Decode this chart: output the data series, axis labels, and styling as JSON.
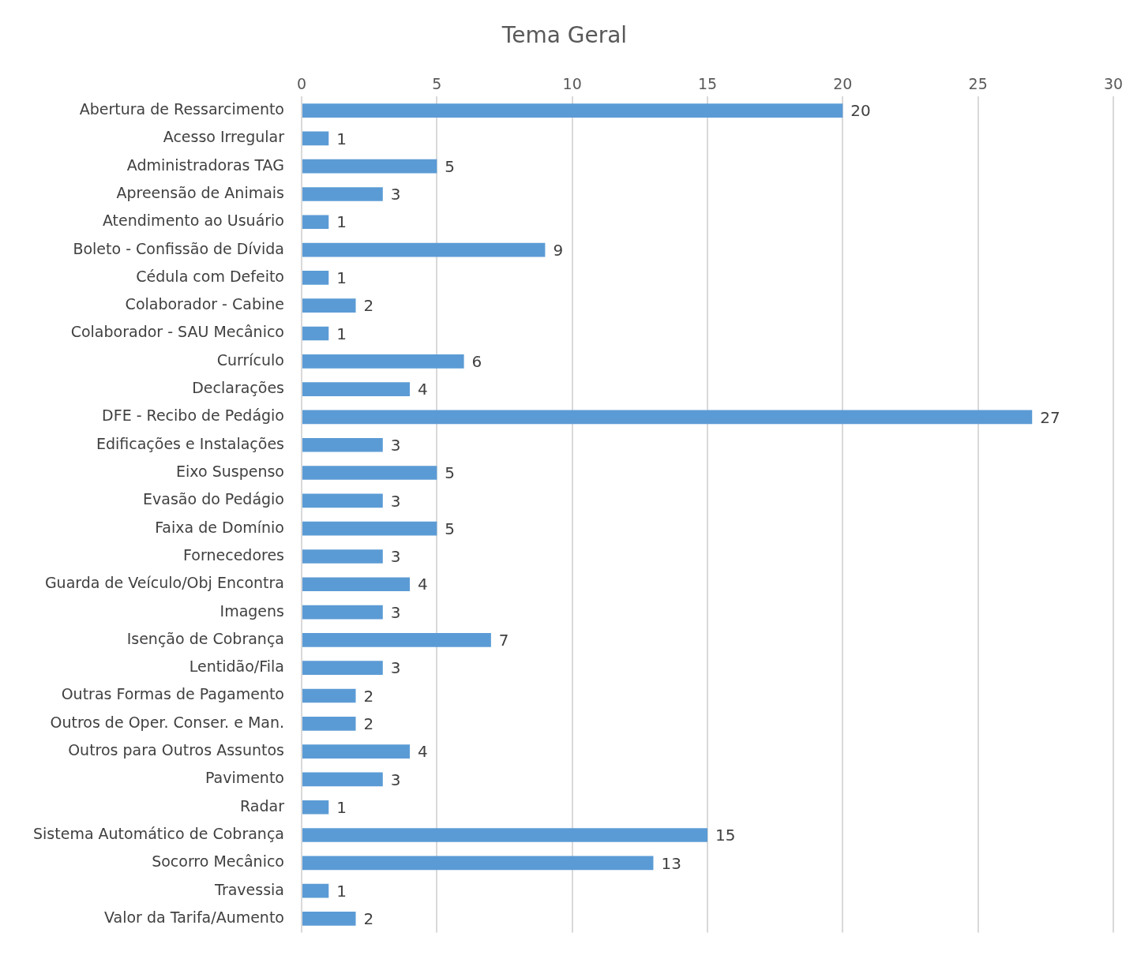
{
  "chart_data": {
    "type": "bar",
    "orientation": "horizontal",
    "title": "Tema Geral",
    "categories": [
      "Abertura de Ressarcimento",
      "Acesso Irregular",
      "Administradoras TAG",
      "Apreensão de Animais",
      "Atendimento ao Usuário",
      "Boleto - Confissão de Dívida",
      "Cédula com Defeito",
      "Colaborador - Cabine",
      "Colaborador - SAU Mecânico",
      "Currículo",
      "Declarações",
      "DFE - Recibo de Pedágio",
      "Edificações e Instalações",
      "Eixo Suspenso",
      "Evasão do Pedágio",
      "Faixa de Domínio",
      "Fornecedores",
      "Guarda de Veículo/Obj Encontra",
      "Imagens",
      "Isenção de Cobrança",
      "Lentidão/Fila",
      "Outras Formas de Pagamento",
      "Outros de Oper. Conser. e Man.",
      "Outros para Outros Assuntos",
      "Pavimento",
      "Radar",
      "Sistema Automático de Cobrança",
      "Socorro Mecânico",
      "Travessia",
      "Valor da Tarifa/Aumento"
    ],
    "values": [
      20,
      1,
      5,
      3,
      1,
      9,
      1,
      2,
      1,
      6,
      4,
      27,
      3,
      5,
      3,
      5,
      3,
      4,
      3,
      7,
      3,
      2,
      2,
      4,
      3,
      1,
      15,
      13,
      1,
      2
    ],
    "color": "#5b9bd5",
    "xlim": [
      0,
      30
    ],
    "xticks": [
      0,
      5,
      10,
      15,
      20,
      25,
      30
    ],
    "grid": "x",
    "data_labels": true,
    "legend": false
  }
}
